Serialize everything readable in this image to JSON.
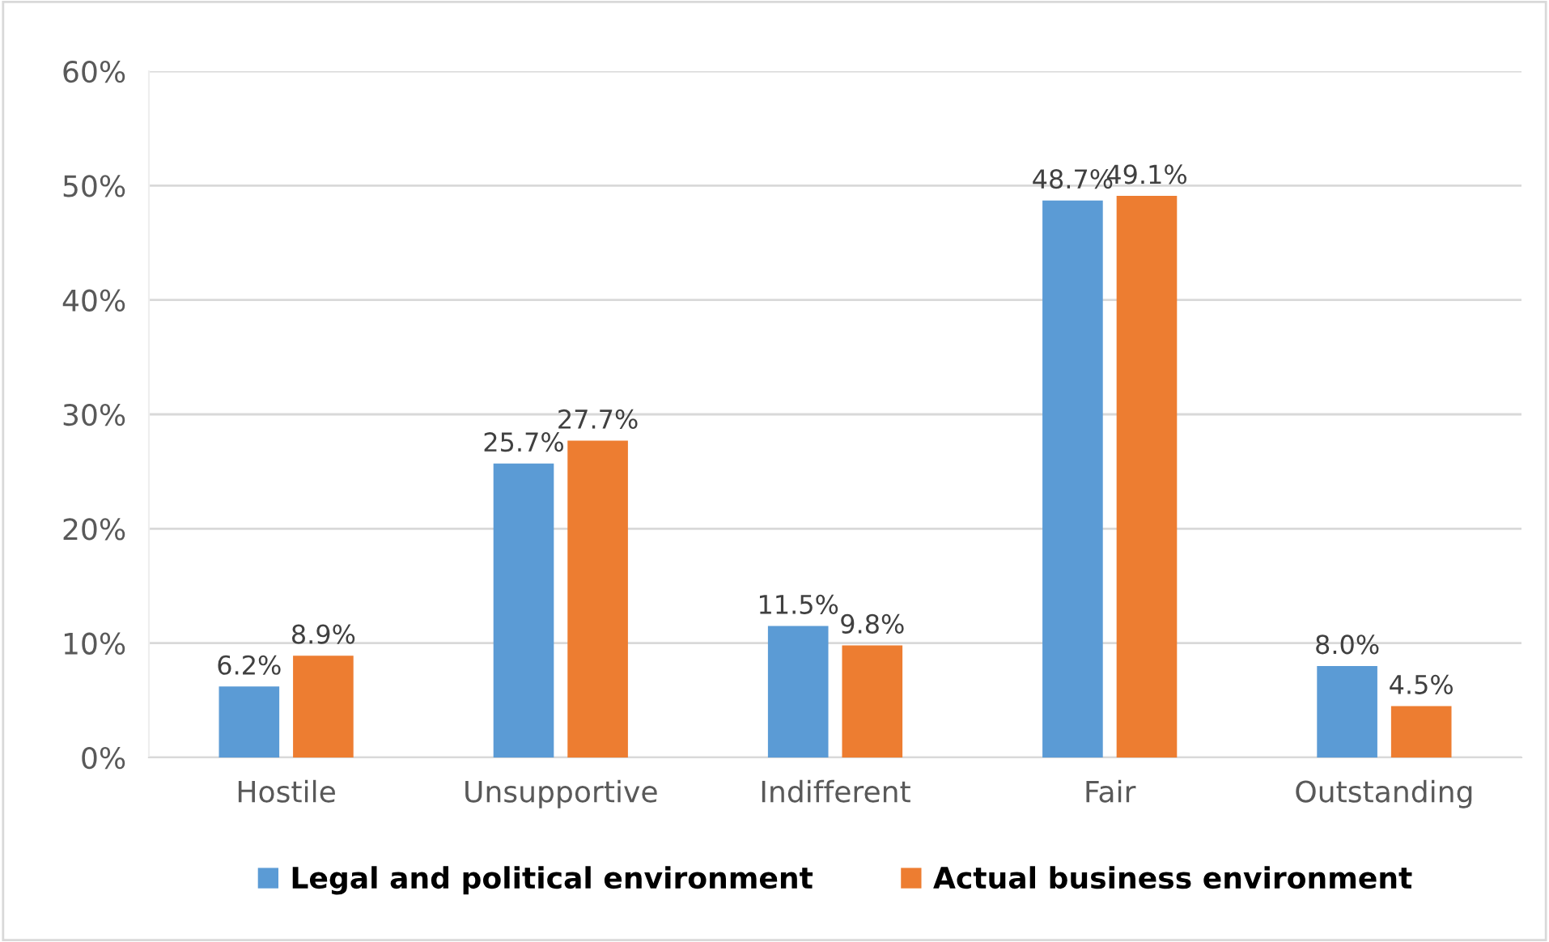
{
  "chart_data": {
    "type": "bar",
    "categories": [
      "Hostile",
      "Unsupportive",
      "Indifferent",
      "Fair",
      "Outstanding"
    ],
    "series": [
      {
        "name": "Legal and political environment",
        "color": "#5b9bd5",
        "values": [
          6.2,
          25.7,
          11.5,
          48.7,
          8.0
        ],
        "value_labels": [
          "6.2%",
          "25.7%",
          "11.5%",
          "48.7%",
          "8.0%"
        ]
      },
      {
        "name": "Actual business environment",
        "color": "#ed7d31",
        "values": [
          8.9,
          27.7,
          9.8,
          49.1,
          4.5
        ],
        "value_labels": [
          "8.9%",
          "27.7%",
          "9.8%",
          "49.1%",
          "4.5%"
        ]
      }
    ],
    "ylim": [
      0,
      60
    ],
    "yticks": [
      {
        "value": 0,
        "label": "0%"
      },
      {
        "value": 10,
        "label": "10%"
      },
      {
        "value": 20,
        "label": "20%"
      },
      {
        "value": 30,
        "label": "30%"
      },
      {
        "value": 40,
        "label": "40%"
      },
      {
        "value": 50,
        "label": "50%"
      },
      {
        "value": 60,
        "label": "60%"
      }
    ],
    "grid": "y",
    "legend": "bottom"
  }
}
